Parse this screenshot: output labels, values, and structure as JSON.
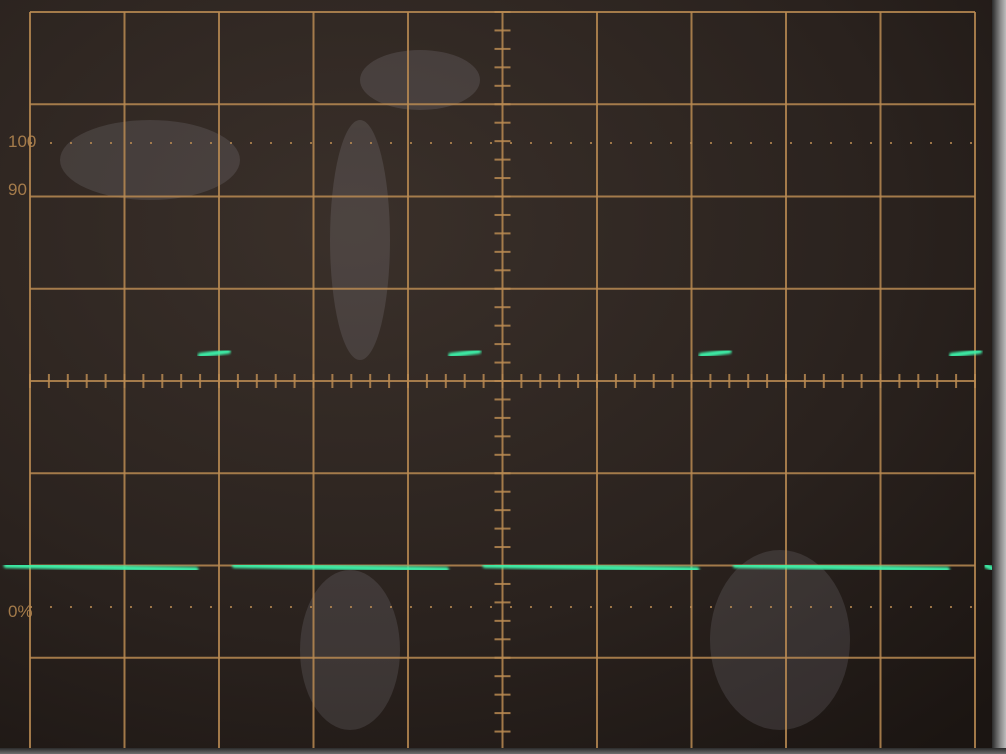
{
  "scope": {
    "graticule_color": "#b98a52",
    "trace_color": "#3df0a8",
    "screen_color": "#2a221e",
    "grid_divisions": {
      "horizontal": 10,
      "vertical": 8
    },
    "labels": {
      "top_reference": "100",
      "ninety_percent": "90",
      "zero_percent": "0%"
    },
    "trace": {
      "low_level_div": -2,
      "high_level_div": 0.3,
      "pulse_period_div": 2.65,
      "pulse_width_div": 0.3
    }
  }
}
